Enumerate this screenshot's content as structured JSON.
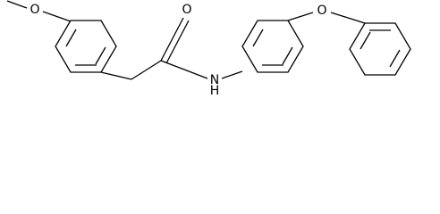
{
  "atoms": [
    {
      "label": "O"
    },
    {
      "label": "O"
    },
    {
      "label": "N"
    },
    {
      "label": "H"
    },
    {
      "label": "O"
    }
  ]
}
